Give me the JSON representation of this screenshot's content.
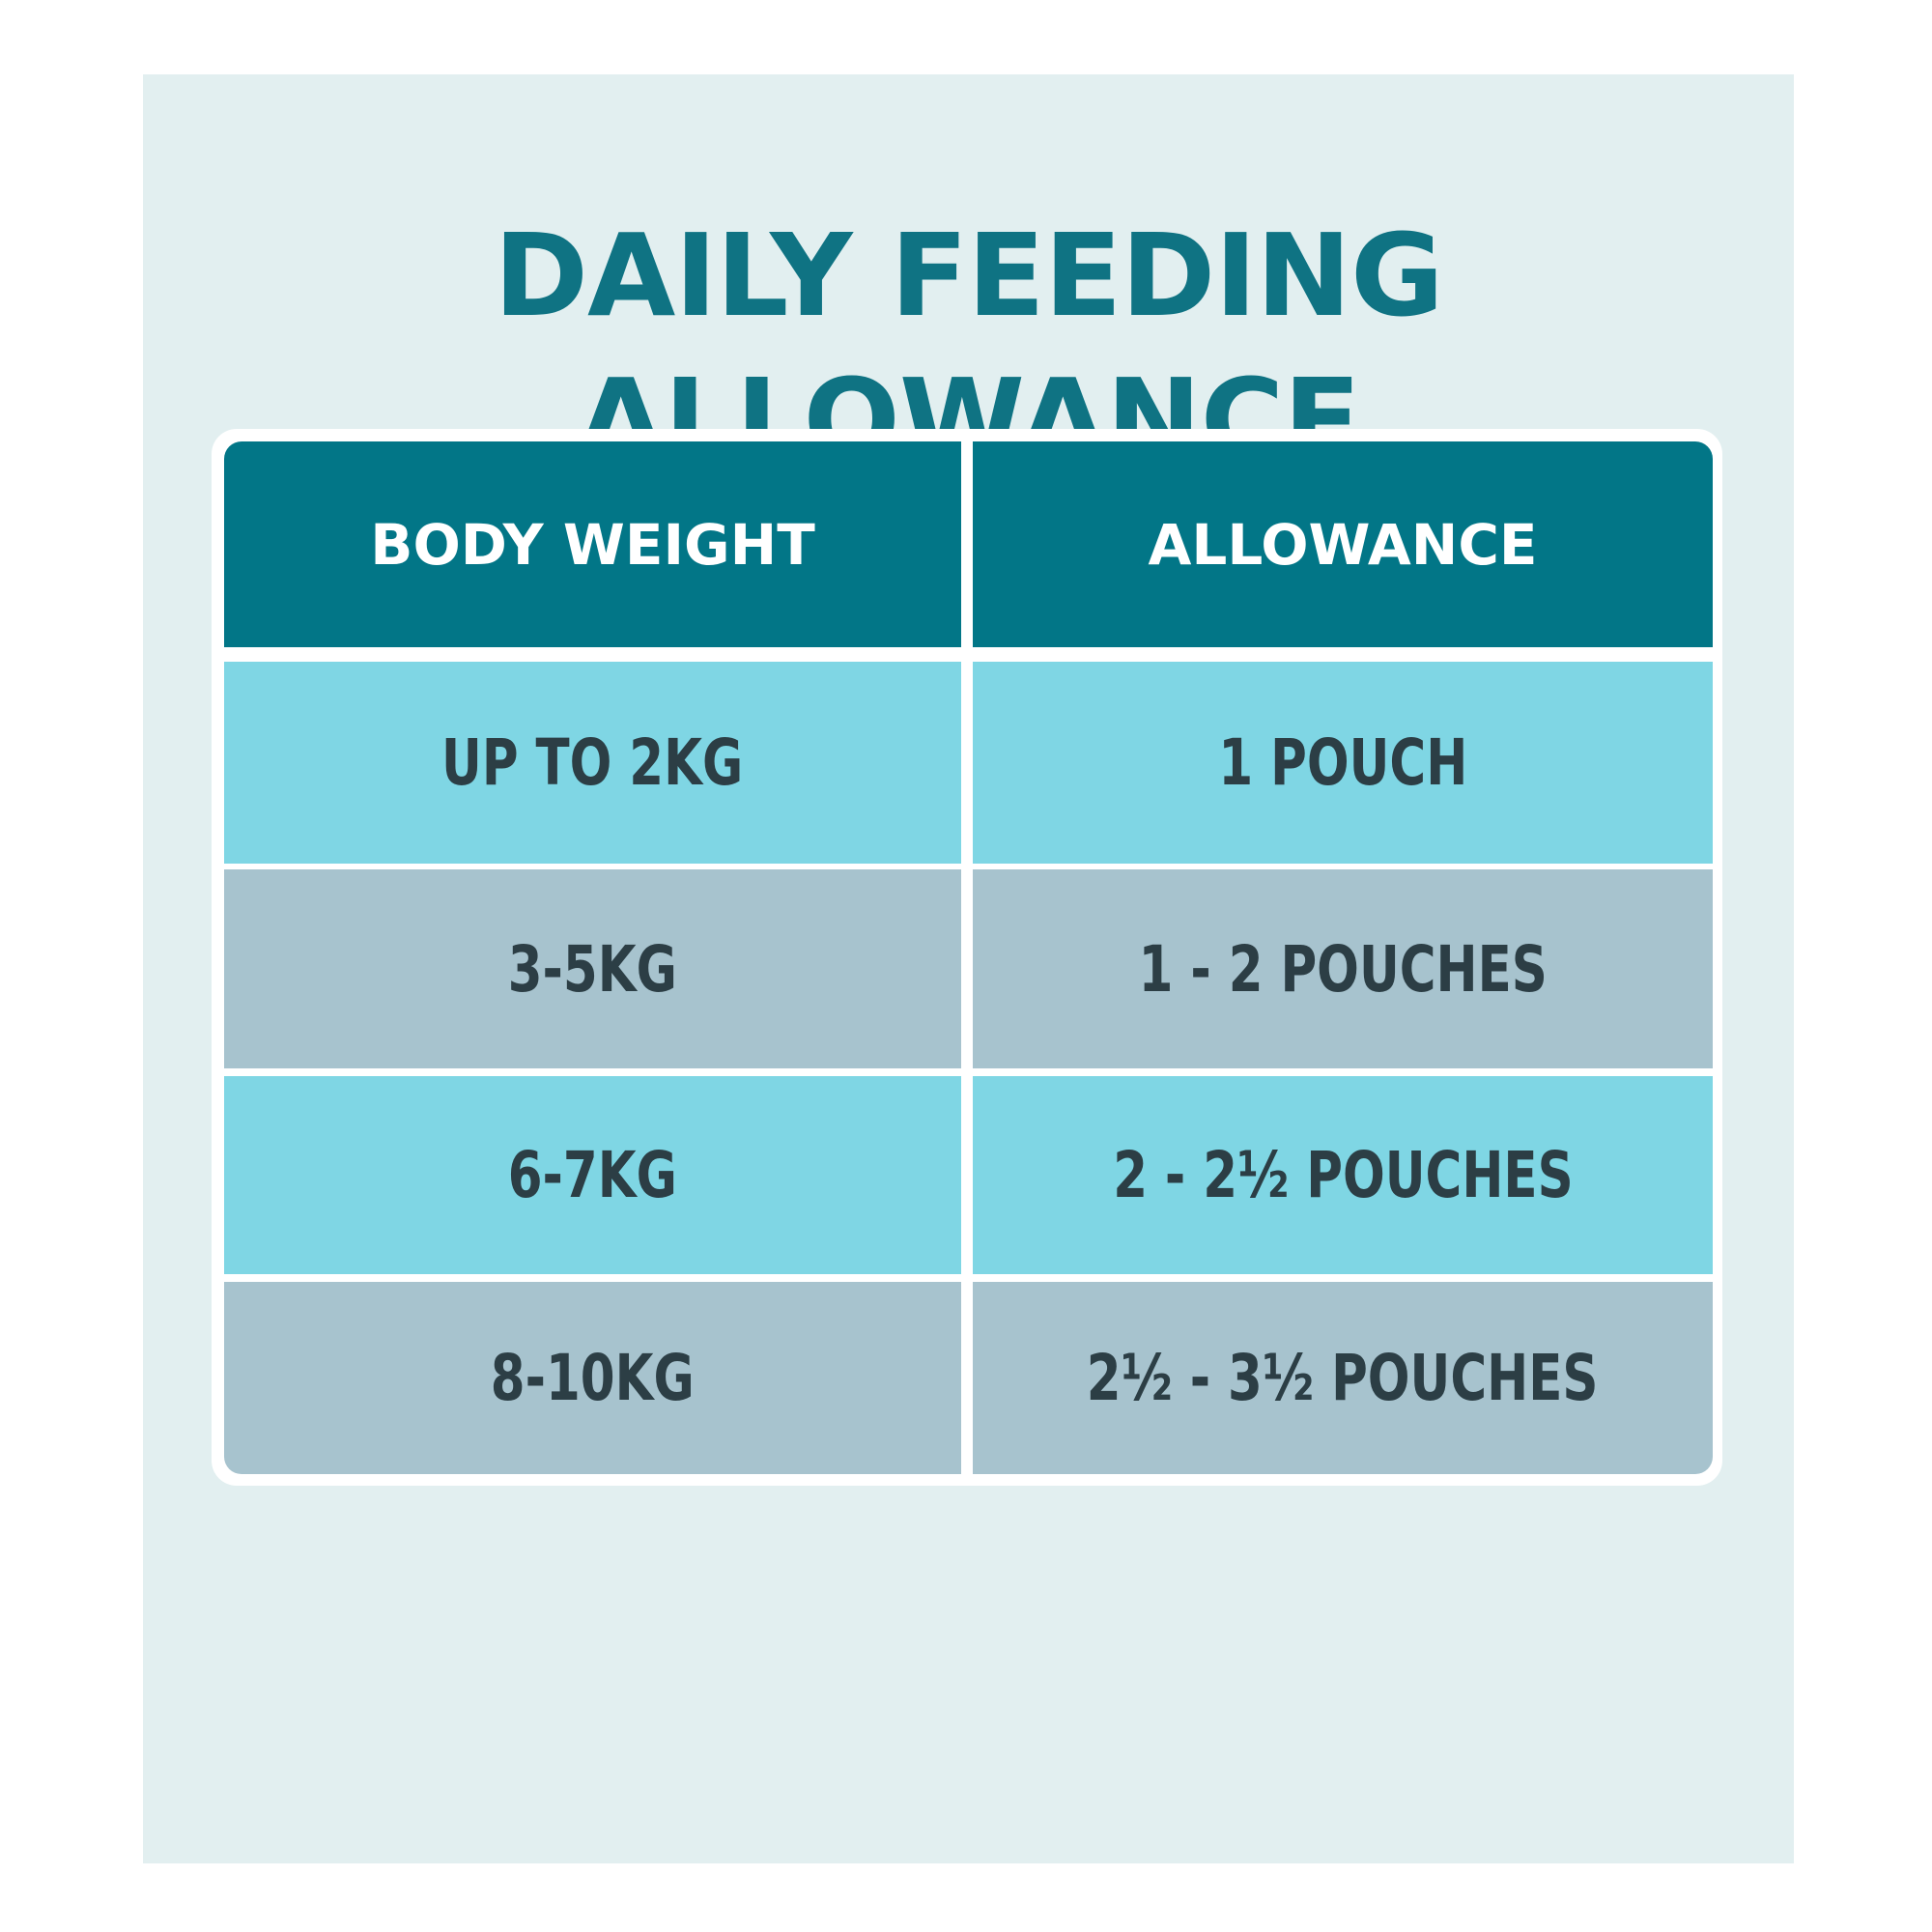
{
  "header": {
    "title": "DAILY FEEDING ALLOWANCE"
  },
  "table": {
    "columns": [
      "BODY WEIGHT",
      "ALLOWANCE"
    ],
    "rows": [
      [
        "UP TO 2KG",
        "1 POUCH"
      ],
      [
        "3-5KG",
        "1 - 2 POUCHES"
      ],
      [
        "6-7KG",
        "2 - 2½ POUCHES"
      ],
      [
        "8-10KG",
        "2½ - 3½ POUCHES"
      ]
    ]
  }
}
